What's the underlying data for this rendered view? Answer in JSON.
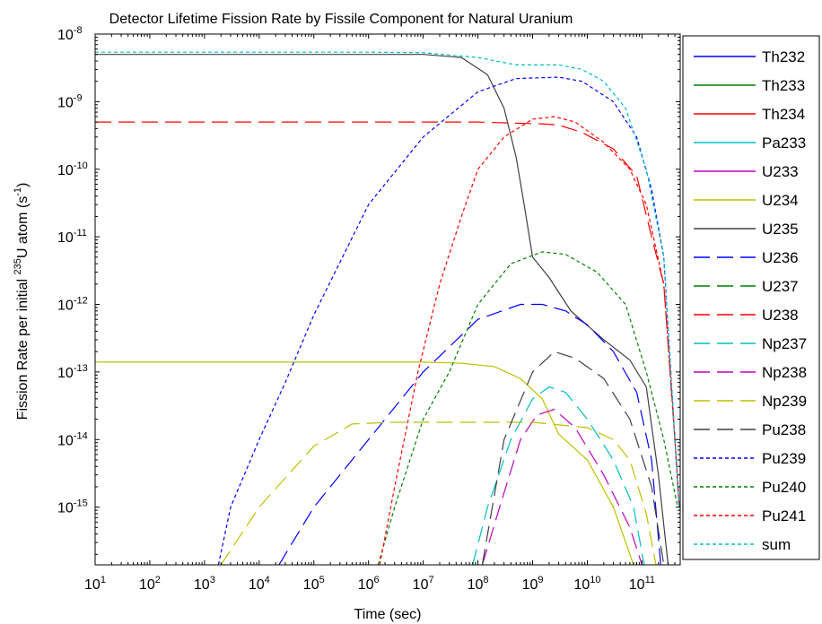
{
  "chart_data": {
    "type": "line",
    "title": "Detector Lifetime Fission Rate by Fissile Component for Natural Uranium",
    "xlabel": "Time (sec)",
    "ylabel": {
      "prefix": "Fission Rate per initial ",
      "sup_iso": "235",
      "mid": "U atom (s",
      "sup_unit": "-1",
      "suffix": ")"
    },
    "x_scale": "log",
    "y_scale": "log",
    "xlim": [
      10,
      500000000000
    ],
    "ylim": [
      1.4e-16,
      1e-08
    ],
    "x_ticks": [
      {
        "value": 10,
        "base": "10",
        "exp": "1"
      },
      {
        "value": 100,
        "base": "10",
        "exp": "2"
      },
      {
        "value": 1000,
        "base": "10",
        "exp": "3"
      },
      {
        "value": 10000,
        "base": "10",
        "exp": "4"
      },
      {
        "value": 100000,
        "base": "10",
        "exp": "5"
      },
      {
        "value": 1000000,
        "base": "10",
        "exp": "6"
      },
      {
        "value": 10000000,
        "base": "10",
        "exp": "7"
      },
      {
        "value": 100000000,
        "base": "10",
        "exp": "8"
      },
      {
        "value": 1000000000,
        "base": "10",
        "exp": "9"
      },
      {
        "value": 10000000000,
        "base": "10",
        "exp": "10"
      },
      {
        "value": 100000000000,
        "base": "10",
        "exp": "11"
      }
    ],
    "y_ticks": [
      {
        "value": 1e-15,
        "base": "10",
        "exp": "-15"
      },
      {
        "value": 1e-14,
        "base": "10",
        "exp": "-14"
      },
      {
        "value": 1e-13,
        "base": "10",
        "exp": "-13"
      },
      {
        "value": 1e-12,
        "base": "10",
        "exp": "-12"
      },
      {
        "value": 1e-11,
        "base": "10",
        "exp": "-11"
      },
      {
        "value": 1e-10,
        "base": "10",
        "exp": "-10"
      },
      {
        "value": 1e-09,
        "base": "10",
        "exp": "-9"
      },
      {
        "value": 1e-08,
        "base": "10",
        "exp": "-8"
      }
    ],
    "grid": false,
    "legend_position": "right",
    "series": [
      {
        "name": "Th232",
        "color": "#0000ff",
        "dash": "solid",
        "points": []
      },
      {
        "name": "Th233",
        "color": "#008000",
        "dash": "solid",
        "points": []
      },
      {
        "name": "Th234",
        "color": "#ff0000",
        "dash": "solid",
        "points": []
      },
      {
        "name": "Pa233",
        "color": "#00bfbf",
        "dash": "solid",
        "points": []
      },
      {
        "name": "U233",
        "color": "#bf00bf",
        "dash": "solid",
        "points": []
      },
      {
        "name": "U234",
        "color": "#bfbf00",
        "dash": "solid",
        "points": [
          [
            10,
            1.4e-13
          ],
          [
            10000000.0,
            1.4e-13
          ],
          [
            50000000.0,
            1.35e-13
          ],
          [
            200000000.0,
            1.2e-13
          ],
          [
            600000000.0,
            8e-14
          ],
          [
            1500000000.0,
            4e-14
          ],
          [
            3000000000.0,
            1.2e-14
          ],
          [
            10000000000.0,
            5e-15
          ],
          [
            30000000000.0,
            1e-15
          ],
          [
            70000000000.0,
            1.4e-16
          ]
        ]
      },
      {
        "name": "U235",
        "color": "#404040",
        "dash": "solid",
        "points": [
          [
            10,
            5e-09
          ],
          [
            10000000.0,
            5e-09
          ],
          [
            50000000.0,
            4.5e-09
          ],
          [
            150000000.0,
            2.5e-09
          ],
          [
            300000000.0,
            8e-10
          ],
          [
            500000000.0,
            1.5e-10
          ],
          [
            700000000.0,
            3e-11
          ],
          [
            1000000000.0,
            5e-12
          ],
          [
            2000000000.0,
            2.5e-12
          ],
          [
            5000000000.0,
            8e-13
          ],
          [
            20000000000.0,
            3e-13
          ],
          [
            60000000000.0,
            1.5e-13
          ],
          [
            120000000000.0,
            6e-14
          ],
          [
            200000000000.0,
            3e-15
          ],
          [
            300000000000.0,
            1.4e-16
          ]
        ]
      },
      {
        "name": "U236",
        "color": "#0000ff",
        "dash": "long",
        "points": [
          [
            23000.0,
            1.4e-16
          ],
          [
            100000.0,
            1e-15
          ],
          [
            1000000.0,
            1e-14
          ],
          [
            10000000.0,
            1e-13
          ],
          [
            100000000.0,
            6e-13
          ],
          [
            600000000.0,
            1e-12
          ],
          [
            1500000000.0,
            1e-12
          ],
          [
            4000000000.0,
            8e-13
          ],
          [
            10000000000.0,
            5e-13
          ],
          [
            30000000000.0,
            2e-13
          ],
          [
            80000000000.0,
            5e-14
          ],
          [
            150000000000.0,
            5e-15
          ],
          [
            220000000000.0,
            1.4e-16
          ]
        ]
      },
      {
        "name": "U237",
        "color": "#008000",
        "dash": "long",
        "points": []
      },
      {
        "name": "U238",
        "color": "#ff0000",
        "dash": "long",
        "points": [
          [
            10,
            5e-10
          ],
          [
            100000000.0,
            5e-10
          ],
          [
            500000000.0,
            4.8e-10
          ],
          [
            1500000000.0,
            4.7e-10
          ],
          [
            3000000000.0,
            4.5e-10
          ],
          [
            8000000000.0,
            3.5e-10
          ],
          [
            30000000000.0,
            2e-10
          ],
          [
            80000000000.0,
            8e-11
          ],
          [
            150000000000.0,
            1e-11
          ],
          [
            250000000000.0,
            2e-12
          ],
          [
            400000000000.0,
            1e-14
          ],
          [
            480000000000.0,
            1e-15
          ]
        ]
      },
      {
        "name": "Np237",
        "color": "#00bfbf",
        "dash": "long",
        "points": [
          [
            80000000.0,
            1.4e-16
          ],
          [
            150000000.0,
            1e-15
          ],
          [
            400000000.0,
            1e-14
          ],
          [
            1000000000.0,
            4e-14
          ],
          [
            2000000000.0,
            6e-14
          ],
          [
            4000000000.0,
            5e-14
          ],
          [
            10000000000.0,
            2e-14
          ],
          [
            30000000000.0,
            5e-15
          ],
          [
            70000000000.0,
            1e-15
          ],
          [
            110000000000.0,
            1.4e-16
          ]
        ]
      },
      {
        "name": "Np238",
        "color": "#bf00bf",
        "dash": "long",
        "points": [
          [
            120000000.0,
            1.4e-16
          ],
          [
            250000000.0,
            1e-15
          ],
          [
            600000000.0,
            1e-14
          ],
          [
            1200000000.0,
            2.3e-14
          ],
          [
            2500000000.0,
            2.8e-14
          ],
          [
            6000000000.0,
            1.5e-14
          ],
          [
            20000000000.0,
            3e-15
          ],
          [
            60000000000.0,
            5e-16
          ],
          [
            100000000000.0,
            1.4e-16
          ]
        ]
      },
      {
        "name": "Np239",
        "color": "#bfbf00",
        "dash": "long",
        "points": [
          [
            2000.0,
            1.4e-16
          ],
          [
            10000.0,
            1e-15
          ],
          [
            100000.0,
            8e-15
          ],
          [
            500000.0,
            1.7e-14
          ],
          [
            3000000.0,
            1.8e-14
          ],
          [
            1000000000.0,
            1.8e-14
          ],
          [
            10000000000.0,
            1.5e-14
          ],
          [
            30000000000.0,
            1e-14
          ],
          [
            60000000000.0,
            5e-15
          ],
          [
            120000000000.0,
            8e-16
          ],
          [
            180000000000.0,
            1.4e-16
          ]
        ]
      },
      {
        "name": "Pu238",
        "color": "#404040",
        "dash": "long",
        "points": [
          [
            120000000.0,
            1.4e-16
          ],
          [
            300000000.0,
            1e-14
          ],
          [
            1000000000.0,
            1e-13
          ],
          [
            2500000000.0,
            2e-13
          ],
          [
            6000000000.0,
            1.6e-13
          ],
          [
            20000000000.0,
            8e-14
          ],
          [
            60000000000.0,
            2e-14
          ],
          [
            150000000000.0,
            2e-15
          ],
          [
            250000000000.0,
            1.4e-16
          ]
        ]
      },
      {
        "name": "Pu239",
        "color": "#0000ff",
        "dash": "dot",
        "points": [
          [
            1800.0,
            1.4e-16
          ],
          [
            3000.0,
            1e-15
          ],
          [
            10000.0,
            1e-14
          ],
          [
            30000.0,
            7e-14
          ],
          [
            100000.0,
            7e-13
          ],
          [
            1000000.0,
            3e-11
          ],
          [
            10000000.0,
            3e-10
          ],
          [
            100000000.0,
            1.4e-09
          ],
          [
            500000000.0,
            2.2e-09
          ],
          [
            3000000000.0,
            2.3e-09
          ],
          [
            8000000000.0,
            2e-09
          ],
          [
            30000000000.0,
            1e-09
          ],
          [
            80000000000.0,
            3e-10
          ],
          [
            150000000000.0,
            5e-11
          ],
          [
            250000000000.0,
            5e-12
          ],
          [
            400000000000.0,
            1e-14
          ],
          [
            480000000000.0,
            1e-15
          ]
        ]
      },
      {
        "name": "Pu240",
        "color": "#008000",
        "dash": "dot",
        "points": [
          [
            1500000.0,
            1.4e-16
          ],
          [
            3000000.0,
            1e-15
          ],
          [
            10000000.0,
            2e-14
          ],
          [
            30000000.0,
            1e-13
          ],
          [
            100000000.0,
            1e-12
          ],
          [
            400000000.0,
            4e-12
          ],
          [
            1500000000.0,
            6e-12
          ],
          [
            4000000000.0,
            5.5e-12
          ],
          [
            15000000000.0,
            3e-12
          ],
          [
            50000000000.0,
            1e-12
          ],
          [
            120000000000.0,
            1e-13
          ],
          [
            250000000000.0,
            1e-14
          ],
          [
            450000000000.0,
            1e-15
          ]
        ]
      },
      {
        "name": "Pu241",
        "color": "#ff0000",
        "dash": "dot",
        "points": [
          [
            1600000.0,
            1.4e-16
          ],
          [
            3000000.0,
            2e-15
          ],
          [
            8000000.0,
            1e-13
          ],
          [
            20000000.0,
            2e-12
          ],
          [
            50000000.0,
            2e-11
          ],
          [
            100000000.0,
            1e-10
          ],
          [
            300000000.0,
            3e-10
          ],
          [
            1000000000.0,
            5.5e-10
          ],
          [
            2500000000.0,
            6e-10
          ],
          [
            6000000000.0,
            5e-10
          ],
          [
            20000000000.0,
            2.5e-10
          ],
          [
            60000000000.0,
            1e-10
          ],
          [
            120000000000.0,
            3e-11
          ],
          [
            250000000000.0,
            2e-12
          ],
          [
            400000000000.0,
            1e-14
          ],
          [
            480000000000.0,
            1e-15
          ]
        ]
      },
      {
        "name": "sum",
        "color": "#00bfbf",
        "dash": "dot",
        "points": [
          [
            10,
            5.4e-09
          ],
          [
            1000000.0,
            5.4e-09
          ],
          [
            10000000.0,
            5.3e-09
          ],
          [
            100000000.0,
            4.5e-09
          ],
          [
            500000000.0,
            3.5e-09
          ],
          [
            3000000000.0,
            3.5e-09
          ],
          [
            8000000000.0,
            3e-09
          ],
          [
            20000000000.0,
            2e-09
          ],
          [
            50000000000.0,
            8e-10
          ],
          [
            120000000000.0,
            1e-10
          ],
          [
            250000000000.0,
            5e-12
          ],
          [
            400000000000.0,
            1e-14
          ],
          [
            480000000000.0,
            1e-15
          ]
        ]
      }
    ]
  }
}
